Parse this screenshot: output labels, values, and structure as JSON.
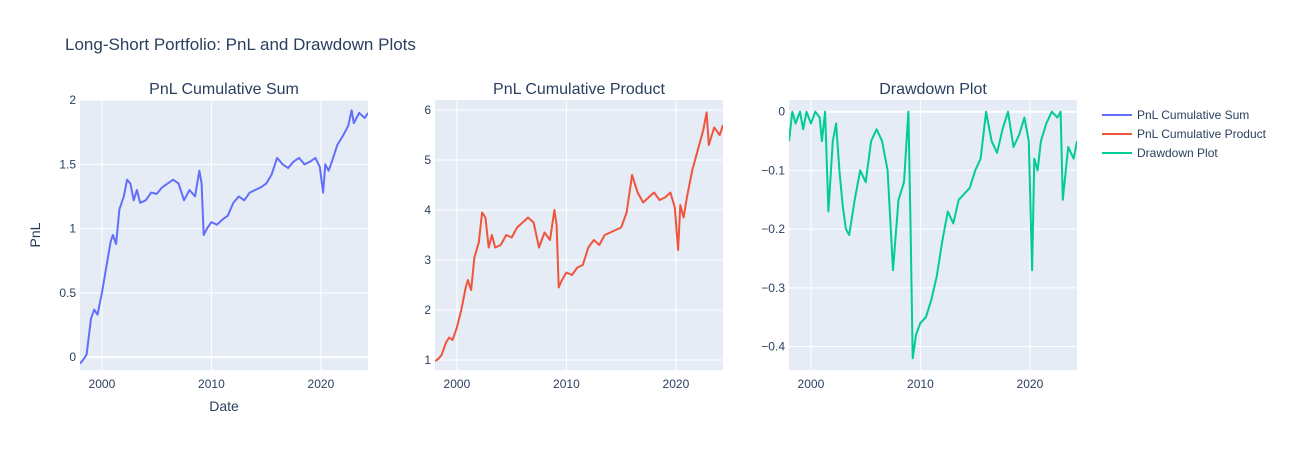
{
  "figure": {
    "title": "Long-Short Portfolio: PnL and Drawdown Plots",
    "legend_position": "right",
    "legend": [
      {
        "name": "PnL Cumulative Sum",
        "color": "#636efa"
      },
      {
        "name": "PnL Cumulative Product",
        "color": "#ef553b"
      },
      {
        "name": "Drawdown Plot",
        "color": "#00cc96"
      }
    ]
  },
  "chart_data": [
    {
      "type": "line",
      "title": "PnL Cumulative Sum",
      "xlabel": "Date",
      "ylabel": "PnL",
      "xlim": [
        1998,
        2024.3
      ],
      "ylim": [
        -0.1,
        2.0
      ],
      "xticks": [
        2000,
        2010,
        2020
      ],
      "xtick_labels": [
        "2000",
        "2010",
        "2020"
      ],
      "yticks": [
        0,
        0.5,
        1,
        1.5,
        2
      ],
      "ytick_labels": [
        "0",
        "0.5",
        "1",
        "1.5",
        "2"
      ],
      "grid": true,
      "series": [
        {
          "name": "PnL Cumulative Sum",
          "color": "#636efa",
          "x": [
            1998.0,
            1998.3,
            1998.6,
            1999.0,
            1999.3,
            1999.6,
            2000.0,
            2000.4,
            2000.8,
            2001.0,
            2001.3,
            2001.6,
            2002.0,
            2002.3,
            2002.6,
            2002.9,
            2003.2,
            2003.5,
            2004.0,
            2004.5,
            2005.0,
            2005.5,
            2006.0,
            2006.5,
            2007.0,
            2007.5,
            2008.0,
            2008.5,
            2008.9,
            2009.1,
            2009.3,
            2009.6,
            2010.0,
            2010.5,
            2011.0,
            2011.5,
            2012.0,
            2012.5,
            2013.0,
            2013.5,
            2014.0,
            2014.5,
            2015.0,
            2015.5,
            2016.0,
            2016.5,
            2017.0,
            2017.5,
            2018.0,
            2018.5,
            2019.0,
            2019.5,
            2019.9,
            2020.2,
            2020.4,
            2020.7,
            2021.0,
            2021.5,
            2022.0,
            2022.5,
            2022.8,
            2023.0,
            2023.5,
            2024.0,
            2024.3
          ],
          "y": [
            -0.05,
            -0.02,
            0.02,
            0.3,
            0.37,
            0.33,
            0.5,
            0.7,
            0.9,
            0.95,
            0.88,
            1.15,
            1.25,
            1.38,
            1.35,
            1.22,
            1.3,
            1.2,
            1.22,
            1.28,
            1.27,
            1.32,
            1.35,
            1.38,
            1.35,
            1.22,
            1.3,
            1.25,
            1.45,
            1.35,
            0.95,
            1.0,
            1.05,
            1.03,
            1.07,
            1.1,
            1.2,
            1.25,
            1.22,
            1.28,
            1.3,
            1.32,
            1.35,
            1.42,
            1.55,
            1.5,
            1.47,
            1.52,
            1.55,
            1.5,
            1.52,
            1.55,
            1.48,
            1.28,
            1.5,
            1.45,
            1.52,
            1.65,
            1.72,
            1.8,
            1.92,
            1.82,
            1.9,
            1.86,
            1.9
          ]
        }
      ]
    },
    {
      "type": "line",
      "title": "PnL Cumulative Product",
      "xlabel": "",
      "ylabel": "",
      "xlim": [
        1998,
        2024.3
      ],
      "ylim": [
        0.8,
        6.2
      ],
      "xticks": [
        2000,
        2010,
        2020
      ],
      "xtick_labels": [
        "2000",
        "2010",
        "2020"
      ],
      "yticks": [
        1,
        2,
        3,
        4,
        5,
        6
      ],
      "ytick_labels": [
        "1",
        "2",
        "3",
        "4",
        "5",
        "6"
      ],
      "grid": true,
      "series": [
        {
          "name": "PnL Cumulative Product",
          "color": "#ef553b",
          "x": [
            1998.0,
            1998.3,
            1998.6,
            1999.0,
            1999.3,
            1999.6,
            2000.0,
            2000.4,
            2000.8,
            2001.0,
            2001.3,
            2001.6,
            2002.0,
            2002.3,
            2002.6,
            2002.9,
            2003.2,
            2003.5,
            2004.0,
            2004.5,
            2005.0,
            2005.5,
            2006.0,
            2006.5,
            2007.0,
            2007.5,
            2008.0,
            2008.5,
            2008.9,
            2009.1,
            2009.3,
            2009.6,
            2010.0,
            2010.5,
            2011.0,
            2011.5,
            2012.0,
            2012.5,
            2013.0,
            2013.5,
            2014.0,
            2014.5,
            2015.0,
            2015.5,
            2016.0,
            2016.5,
            2017.0,
            2017.5,
            2018.0,
            2018.5,
            2019.0,
            2019.5,
            2019.9,
            2020.2,
            2020.4,
            2020.7,
            2021.0,
            2021.5,
            2022.0,
            2022.5,
            2022.8,
            2023.0,
            2023.5,
            2024.0,
            2024.3
          ],
          "y": [
            0.98,
            1.02,
            1.1,
            1.35,
            1.45,
            1.4,
            1.65,
            2.0,
            2.45,
            2.6,
            2.4,
            3.05,
            3.35,
            3.95,
            3.85,
            3.25,
            3.5,
            3.25,
            3.3,
            3.5,
            3.45,
            3.65,
            3.75,
            3.85,
            3.75,
            3.25,
            3.55,
            3.4,
            4.0,
            3.7,
            2.45,
            2.6,
            2.75,
            2.7,
            2.85,
            2.9,
            3.25,
            3.4,
            3.3,
            3.5,
            3.55,
            3.6,
            3.65,
            3.95,
            4.7,
            4.35,
            4.15,
            4.25,
            4.35,
            4.2,
            4.25,
            4.35,
            4.05,
            3.2,
            4.1,
            3.85,
            4.25,
            4.8,
            5.2,
            5.6,
            5.95,
            5.3,
            5.65,
            5.5,
            5.7
          ]
        }
      ]
    },
    {
      "type": "line",
      "title": "Drawdown Plot",
      "xlabel": "",
      "ylabel": "",
      "xlim": [
        1998,
        2024.3
      ],
      "ylim": [
        -0.44,
        0.02
      ],
      "xticks": [
        2000,
        2010,
        2020
      ],
      "xtick_labels": [
        "2000",
        "2010",
        "2020"
      ],
      "yticks": [
        0,
        -0.1,
        -0.2,
        -0.3,
        -0.4
      ],
      "ytick_labels": [
        "0",
        "−0.1",
        "−0.2",
        "−0.3",
        "−0.4"
      ],
      "grid": true,
      "series": [
        {
          "name": "Drawdown Plot",
          "color": "#00cc96",
          "x": [
            1998.0,
            1998.3,
            1998.6,
            1999.0,
            1999.3,
            1999.6,
            2000.0,
            2000.4,
            2000.8,
            2001.0,
            2001.3,
            2001.6,
            2002.0,
            2002.3,
            2002.6,
            2002.9,
            2003.2,
            2003.5,
            2004.0,
            2004.5,
            2005.0,
            2005.5,
            2006.0,
            2006.5,
            2007.0,
            2007.5,
            2008.0,
            2008.5,
            2008.9,
            2009.1,
            2009.3,
            2009.6,
            2010.0,
            2010.5,
            2011.0,
            2011.5,
            2012.0,
            2012.5,
            2013.0,
            2013.5,
            2014.0,
            2014.5,
            2015.0,
            2015.5,
            2016.0,
            2016.5,
            2017.0,
            2017.5,
            2018.0,
            2018.5,
            2019.0,
            2019.5,
            2019.9,
            2020.2,
            2020.4,
            2020.7,
            2021.0,
            2021.5,
            2022.0,
            2022.5,
            2022.8,
            2023.0,
            2023.5,
            2024.0,
            2024.3
          ],
          "y": [
            -0.05,
            0.0,
            -0.02,
            0.0,
            -0.03,
            0.0,
            -0.02,
            0.0,
            -0.01,
            -0.05,
            0.0,
            -0.17,
            -0.05,
            -0.02,
            -0.1,
            -0.16,
            -0.2,
            -0.21,
            -0.15,
            -0.1,
            -0.12,
            -0.05,
            -0.03,
            -0.05,
            -0.1,
            -0.27,
            -0.15,
            -0.12,
            0.0,
            -0.2,
            -0.42,
            -0.38,
            -0.36,
            -0.35,
            -0.32,
            -0.28,
            -0.22,
            -0.17,
            -0.19,
            -0.15,
            -0.14,
            -0.13,
            -0.1,
            -0.08,
            0.0,
            -0.05,
            -0.07,
            -0.03,
            0.0,
            -0.06,
            -0.04,
            -0.01,
            -0.05,
            -0.27,
            -0.08,
            -0.1,
            -0.05,
            -0.02,
            0.0,
            -0.01,
            0.0,
            -0.15,
            -0.06,
            -0.08,
            -0.05
          ]
        }
      ]
    }
  ]
}
